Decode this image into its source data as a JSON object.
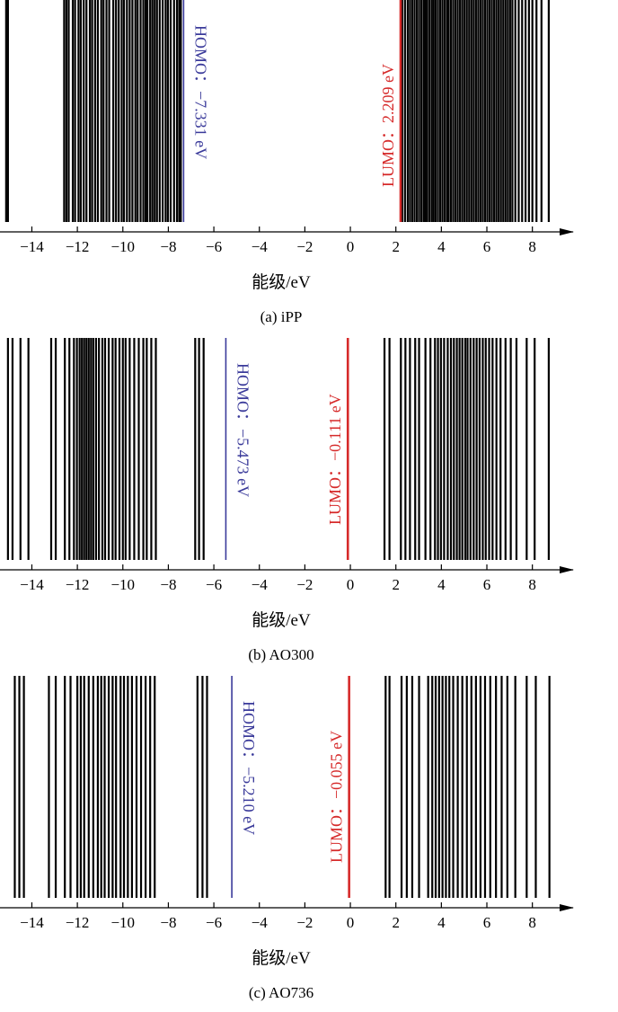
{
  "colors": {
    "level": "#000000",
    "homo": "#3a3a9a",
    "lumo": "#d62a2a",
    "axis": "#000000"
  },
  "chart_data": [
    {
      "type": "spectrum",
      "caption": "(a) iPP",
      "xlabel": "能级/eV",
      "xlim": [
        -15.4,
        9.0
      ],
      "ticks": [
        -14,
        -12,
        -10,
        -8,
        -6,
        -4,
        -2,
        0,
        2,
        4,
        6,
        8
      ],
      "tick_labels": [
        "−14",
        "−12",
        "−10",
        "−8",
        "−6",
        "−4",
        "−2",
        "0",
        "2",
        "4",
        "6",
        "8"
      ],
      "homo": {
        "value": -7.331,
        "label": "HOMO：−7.331 eV"
      },
      "lumo": {
        "value": 2.209,
        "label": "LUMO：2.209 eV"
      },
      "levels": [
        -15.13,
        -15.05,
        -12.58,
        -12.48,
        -12.38,
        -12.2,
        -12.1,
        -11.95,
        -11.85,
        -11.72,
        -11.6,
        -11.45,
        -11.35,
        -11.22,
        -11.1,
        -10.95,
        -10.85,
        -10.72,
        -10.6,
        -10.42,
        -10.3,
        -10.18,
        -10.05,
        -9.95,
        -9.82,
        -9.7,
        -9.58,
        -9.45,
        -9.35,
        -9.22,
        -9.1,
        -9.0,
        -8.92,
        -8.8,
        -8.7,
        -8.6,
        -8.5,
        -8.38,
        -8.25,
        -8.12,
        -8.02,
        -7.9,
        -7.75,
        -7.62,
        -7.52,
        -7.45,
        -7.331,
        2.209,
        2.28,
        2.4,
        2.52,
        2.62,
        2.72,
        2.82,
        2.92,
        3.02,
        3.12,
        3.22,
        3.3,
        3.38,
        3.48,
        3.58,
        3.66,
        3.75,
        3.85,
        3.95,
        4.05,
        4.15,
        4.25,
        4.32,
        4.42,
        4.52,
        4.62,
        4.72,
        4.82,
        4.92,
        5.02,
        5.12,
        5.22,
        5.32,
        5.42,
        5.52,
        5.62,
        5.72,
        5.82,
        5.92,
        6.02,
        6.12,
        6.22,
        6.32,
        6.42,
        6.52,
        6.62,
        6.72,
        6.82,
        6.92,
        7.02,
        7.12,
        7.25,
        7.4,
        7.55,
        7.7,
        7.85,
        8.0,
        8.18,
        8.4,
        8.72
      ]
    },
    {
      "type": "spectrum",
      "caption": "(b) AO300",
      "xlabel": "能级/eV",
      "xlim": [
        -15.4,
        9.0
      ],
      "ticks": [
        -14,
        -12,
        -10,
        -8,
        -6,
        -4,
        -2,
        0,
        2,
        4,
        6,
        8
      ],
      "tick_labels": [
        "−14",
        "−12",
        "−10",
        "−8",
        "−6",
        "−4",
        "−2",
        "0",
        "2",
        "4",
        "6",
        "8"
      ],
      "homo": {
        "value": -5.473,
        "label": "HOMO：−5.473 eV"
      },
      "lumo": {
        "value": -0.111,
        "label": "LUMO：−0.111 eV"
      },
      "levels": [
        -15.05,
        -14.85,
        -14.5,
        -14.15,
        -13.15,
        -12.95,
        -12.55,
        -12.35,
        -12.15,
        -12.02,
        -11.9,
        -11.8,
        -11.7,
        -11.6,
        -11.5,
        -11.4,
        -11.3,
        -11.18,
        -11.05,
        -10.9,
        -10.78,
        -10.62,
        -10.45,
        -10.32,
        -10.15,
        -10.0,
        -9.88,
        -9.7,
        -9.5,
        -9.3,
        -9.1,
        -8.95,
        -8.75,
        -8.55,
        -6.82,
        -6.65,
        -6.45,
        -5.473,
        -0.111,
        1.5,
        1.72,
        2.22,
        2.42,
        2.62,
        2.85,
        3.02,
        3.3,
        3.52,
        3.72,
        3.85,
        3.98,
        4.12,
        4.28,
        4.42,
        4.55,
        4.68,
        4.8,
        4.92,
        5.05,
        5.15,
        5.28,
        5.42,
        5.55,
        5.68,
        5.82,
        5.95,
        6.1,
        6.25,
        6.42,
        6.6,
        6.82,
        7.05,
        7.3,
        7.75,
        8.1,
        8.72
      ]
    },
    {
      "type": "spectrum",
      "caption": "(c) AO736",
      "xlabel": "能级/eV",
      "xlim": [
        -15.4,
        9.0
      ],
      "ticks": [
        -14,
        -12,
        -10,
        -8,
        -6,
        -4,
        -2,
        0,
        2,
        4,
        6,
        8
      ],
      "tick_labels": [
        "−14",
        "−12",
        "−10",
        "−8",
        "−6",
        "−4",
        "−2",
        "0",
        "2",
        "4",
        "6",
        "8"
      ],
      "homo": {
        "value": -5.21,
        "label": "HOMO：−5.210 eV"
      },
      "lumo": {
        "value": -0.055,
        "label": "LUMO：−0.055 eV"
      },
      "levels": [
        -14.75,
        -14.55,
        -14.35,
        -13.25,
        -12.95,
        -12.55,
        -12.3,
        -12.0,
        -11.85,
        -11.7,
        -11.5,
        -11.3,
        -11.1,
        -10.95,
        -10.8,
        -10.62,
        -10.45,
        -10.3,
        -10.1,
        -9.95,
        -9.78,
        -9.6,
        -9.4,
        -9.2,
        -9.0,
        -8.8,
        -8.6,
        -6.72,
        -6.5,
        -6.3,
        -5.21,
        -0.055,
        1.55,
        1.72,
        2.25,
        2.48,
        2.72,
        3.02,
        3.42,
        3.6,
        3.75,
        3.9,
        4.05,
        4.2,
        4.35,
        4.52,
        4.72,
        4.92,
        5.12,
        5.32,
        5.52,
        5.72,
        5.92,
        6.15,
        6.4,
        6.65,
        6.9,
        7.25,
        7.75,
        8.15,
        8.75
      ]
    }
  ]
}
